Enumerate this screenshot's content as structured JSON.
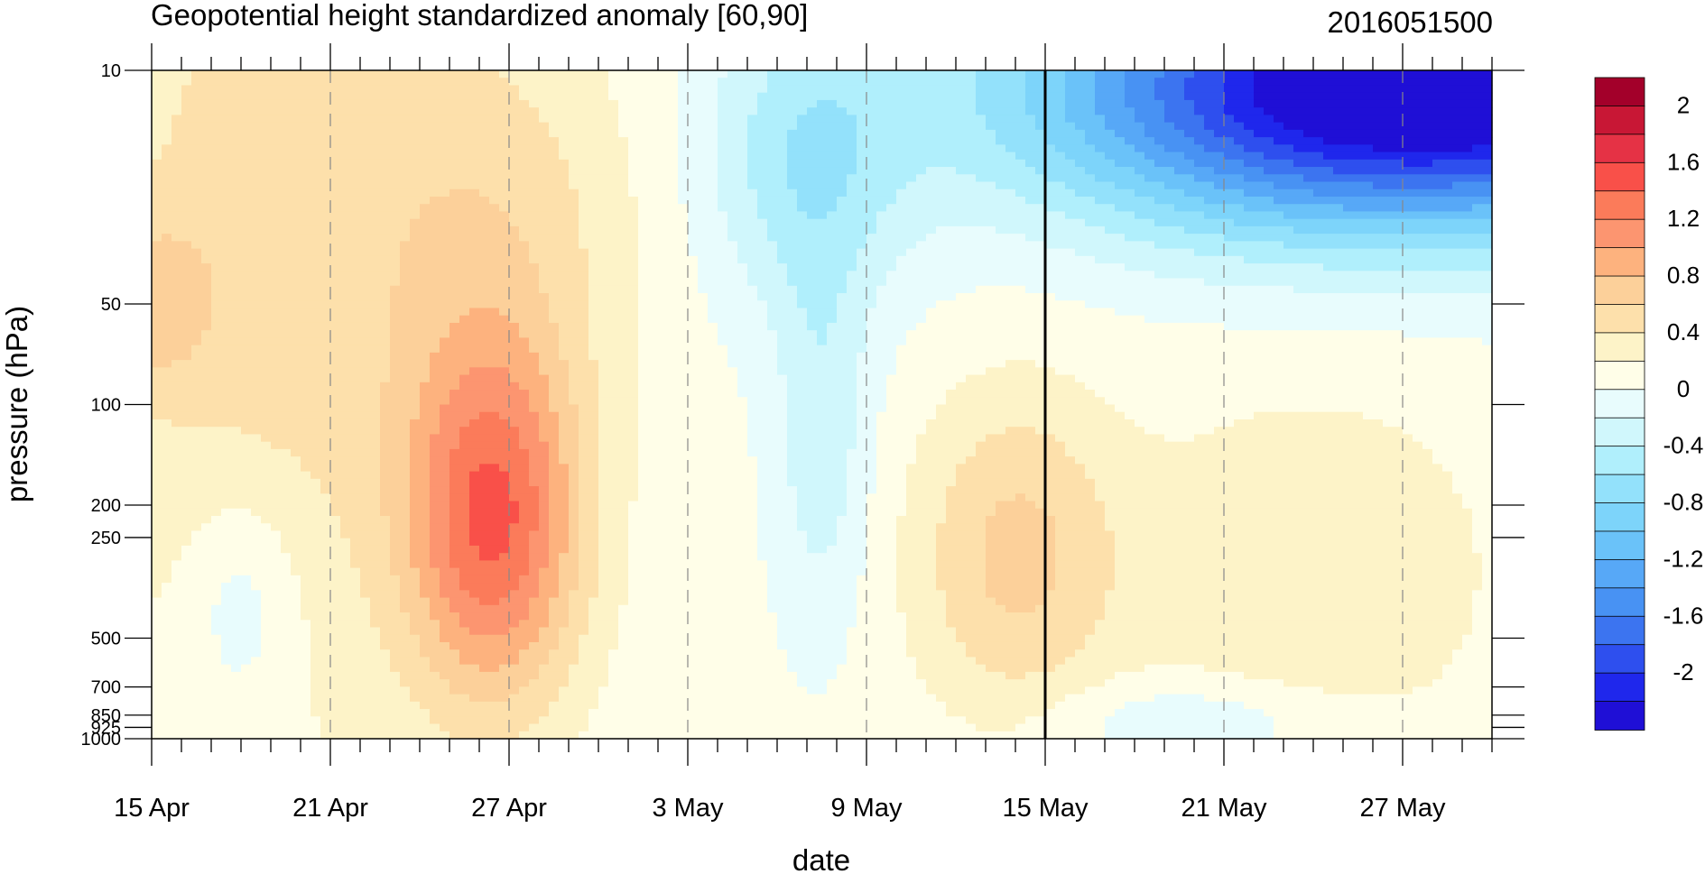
{
  "chart_data": {
    "type": "heatmap",
    "title": "Geopotential height standardized anomaly [60,90]",
    "date_label": "2016051500",
    "xlabel": "date",
    "ylabel": "pressure (hPa)",
    "x_tick_labels": [
      "15 Apr",
      "21 Apr",
      "27 Apr",
      "3 May",
      "9 May",
      "15 May",
      "21 May",
      "27 May"
    ],
    "y_tick_labels": [
      "10",
      "50",
      "100",
      "200",
      "250",
      "500",
      "700",
      "850",
      "925",
      "1000"
    ],
    "y_levels_hPa": [
      10,
      50,
      100,
      200,
      250,
      500,
      700,
      850,
      925,
      1000
    ],
    "x_range_days_from_15_Apr": [
      0,
      45
    ],
    "y_range_hPa": [
      10,
      1000
    ],
    "y_scale": "log",
    "vertical_marker_date": "15 May",
    "colorbar_labels": [
      "2",
      "1.6",
      "1.2",
      "0.8",
      "0.4",
      "0",
      "-0.4",
      "-0.8",
      "-1.2",
      "-1.6",
      "-2"
    ],
    "colorbar_colors": [
      "#a50026",
      "#d73027",
      "#f46d43",
      "#fdae61",
      "#fee090",
      "#ffffbf",
      "#e0f3f8",
      "#abd9e9",
      "#74add1",
      "#4575b4",
      "#313695"
    ],
    "legend_placement": "right",
    "description_levels": [
      -2.2,
      -2,
      -1.8,
      -1.6,
      -1.4,
      -1.2,
      -1,
      -0.8,
      -0.6,
      -0.4,
      -0.2,
      0,
      0.2,
      0.4,
      0.6,
      0.8,
      1,
      1.2,
      1.4,
      1.6,
      1.8,
      2,
      2.2
    ]
  },
  "colors": {
    "bins": [
      "#1f0fd6",
      "#1f27ec",
      "#2e4fee",
      "#3c74f0",
      "#4892f3",
      "#57a8f7",
      "#6ac2f9",
      "#7dd4fa",
      "#93e1fb",
      "#b0effc",
      "#d0f7fc",
      "#e8fcfd",
      "#fffee8",
      "#fdf3c8",
      "#fde0ab",
      "#fcd09a",
      "#fdb27e",
      "#fc9570",
      "#fb7b5a",
      "#f95049",
      "#e53245",
      "#c81735",
      "#a3002a"
    ]
  }
}
